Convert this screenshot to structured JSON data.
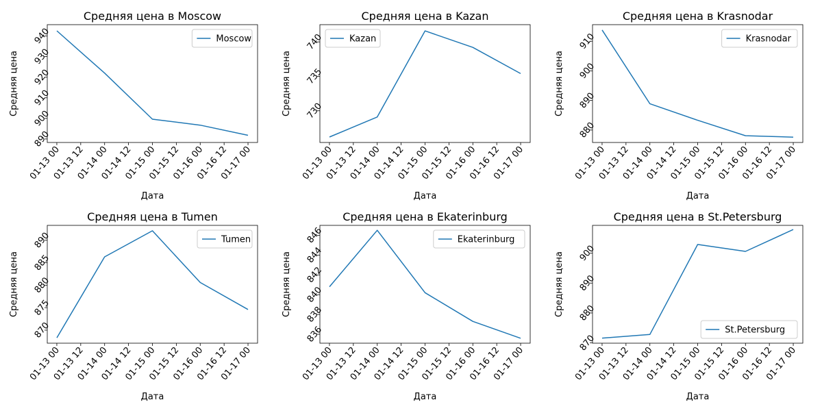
{
  "figure": {
    "line_color": "#1f77b4"
  },
  "chart_data": [
    {
      "type": "line",
      "title": "Средняя цена в Moscow",
      "xlabel": "Дата",
      "ylabel": "Средняя цена",
      "x": [
        "2024-01-13",
        "2024-01-14",
        "2024-01-15",
        "2024-01-16",
        "2024-01-17"
      ],
      "xticks": [
        "01-13 00",
        "01-13 12",
        "01-14 00",
        "01-14 12",
        "01-15 00",
        "01-15 12",
        "01-16 00",
        "01-16 12",
        "01-17 00"
      ],
      "yticks": [
        890,
        900,
        910,
        920,
        930,
        940
      ],
      "ylim": [
        888.3,
        945.5
      ],
      "series": [
        {
          "name": "Moscow",
          "values": [
            942.5,
            922,
            899.6,
            896.7,
            891.8
          ]
        }
      ],
      "legend_position": "upper right",
      "grid": false
    },
    {
      "type": "line",
      "title": "Средняя цена в Kazan",
      "xlabel": "Дата",
      "ylabel": "Средняя цена",
      "x": [
        "2024-01-13",
        "2024-01-14",
        "2024-01-15",
        "2024-01-16",
        "2024-01-17"
      ],
      "xticks": [
        "01-13 00",
        "01-13 12",
        "01-14 00",
        "01-14 12",
        "01-15 00",
        "01-15 12",
        "01-16 00",
        "01-16 12",
        "01-17 00"
      ],
      "yticks": [
        730,
        735,
        740
      ],
      "ylim": [
        725.4,
        742.5
      ],
      "series": [
        {
          "name": "Kazan",
          "values": [
            726.2,
            729.1,
            741.6,
            739.2,
            735.4
          ]
        }
      ],
      "legend_position": "upper left",
      "grid": false
    },
    {
      "type": "line",
      "title": "Средняя цена в Krasnodar",
      "xlabel": "Дата",
      "ylabel": "Средняя цена",
      "x": [
        "2024-01-13",
        "2024-01-14",
        "2024-01-15",
        "2024-01-16",
        "2024-01-17"
      ],
      "xticks": [
        "01-13 00",
        "01-13 12",
        "01-14 00",
        "01-14 12",
        "01-15 00",
        "01-15 12",
        "01-16 00",
        "01-16 12",
        "01-17 00"
      ],
      "yticks": [
        880,
        890,
        900,
        910
      ],
      "ylim": [
        875.8,
        915.6
      ],
      "series": [
        {
          "name": "Krasnodar",
          "values": [
            913.8,
            888.9,
            883.3,
            878.1,
            877.6
          ]
        }
      ],
      "legend_position": "upper right",
      "grid": false
    },
    {
      "type": "line",
      "title": "Средняя цена в Tumen",
      "xlabel": "Дата",
      "ylabel": "Средняя цена",
      "x": [
        "2024-01-13",
        "2024-01-14",
        "2024-01-15",
        "2024-01-16",
        "2024-01-17"
      ],
      "xticks": [
        "01-13 00",
        "01-13 12",
        "01-14 00",
        "01-14 12",
        "01-15 00",
        "01-15 12",
        "01-16 00",
        "01-16 12",
        "01-17 00"
      ],
      "yticks": [
        870,
        875,
        880,
        885,
        890
      ],
      "ylim": [
        867.1,
        893.3
      ],
      "series": [
        {
          "name": "Tumen",
          "values": [
            868.3,
            886.3,
            892.1,
            880.6,
            874.6
          ]
        }
      ],
      "legend_position": "upper right",
      "grid": false
    },
    {
      "type": "line",
      "title": "Средняя цена в Ekaterinburg",
      "xlabel": "Дата",
      "ylabel": "Средняя цена",
      "x": [
        "2024-01-13",
        "2024-01-14",
        "2024-01-15",
        "2024-01-16",
        "2024-01-17"
      ],
      "xticks": [
        "01-13 00",
        "01-13 12",
        "01-14 00",
        "01-14 12",
        "01-15 00",
        "01-15 12",
        "01-16 00",
        "01-16 12",
        "01-17 00"
      ],
      "yticks": [
        836,
        838,
        840,
        842,
        844,
        846
      ],
      "ylim": [
        835.1,
        847.0
      ],
      "series": [
        {
          "name": "Ekaterinburg",
          "values": [
            840.8,
            846.5,
            840.2,
            837.3,
            835.6
          ]
        }
      ],
      "legend_position": "upper right",
      "grid": false
    },
    {
      "type": "line",
      "title": "Средняя цена в St.Petersburg",
      "xlabel": "Дата",
      "ylabel": "Средняя цена",
      "x": [
        "2024-01-13",
        "2024-01-14",
        "2024-01-15",
        "2024-01-16",
        "2024-01-17"
      ],
      "xticks": [
        "01-13 00",
        "01-13 12",
        "01-14 00",
        "01-14 12",
        "01-15 00",
        "01-15 12",
        "01-16 00",
        "01-16 12",
        "01-17 00"
      ],
      "yticks": [
        870,
        880,
        890,
        900
      ],
      "ylim": [
        869.9,
        909.3
      ],
      "series": [
        {
          "name": "St.Petersburg",
          "values": [
            871.6,
            872.8,
            902.9,
            900.6,
            907.9
          ]
        }
      ],
      "legend_position": "lower right",
      "grid": false
    }
  ]
}
